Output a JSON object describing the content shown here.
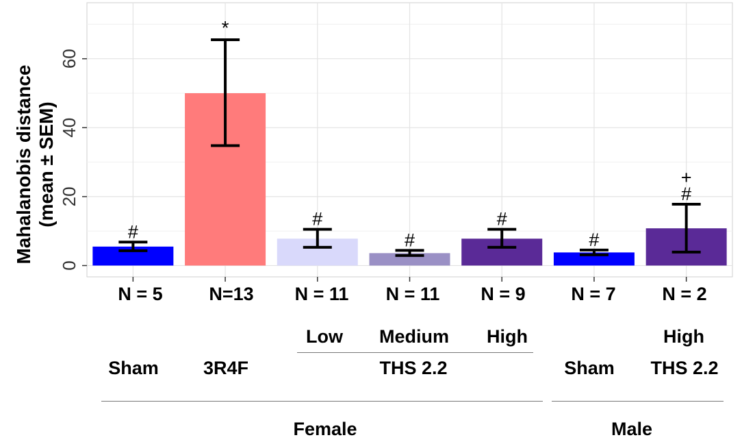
{
  "chart_data": {
    "type": "bar",
    "categories": [
      "Sham",
      "3R4F",
      "Low",
      "Medium",
      "High",
      "Sham",
      "High"
    ],
    "values": [
      5.5,
      50,
      7.8,
      3.6,
      7.8,
      3.8,
      10.8
    ],
    "error_upper": [
      6.8,
      65.5,
      10.5,
      4.4,
      10.5,
      4.5,
      17.8
    ],
    "error_lower": [
      4.3,
      34.8,
      5.3,
      2.9,
      5.3,
      3.1,
      3.9
    ],
    "colors": [
      "#0000ff",
      "#ff7b7b",
      "#d9d9fb",
      "#9a90c5",
      "#5a2a97",
      "#0000ff",
      "#5a2a97"
    ],
    "significance": [
      "#",
      "*",
      "#",
      "#",
      "#",
      "#",
      "+\n#"
    ],
    "n_labels": [
      "N = 5",
      "N=13",
      "N = 11",
      "N = 11",
      "N = 9",
      "N = 7",
      "N = 2"
    ],
    "ylabel_line1": "Mahalanobis distance",
    "ylabel_line2": "(mean ± SEM)",
    "yticks": [
      0,
      20,
      40,
      60
    ],
    "ylim": [
      -3,
      76
    ],
    "grid": true,
    "dose_labels": {
      "low": "Low",
      "medium": "Medium",
      "high_female": "High",
      "high_male": "High"
    },
    "group_labels": {
      "sham_female": "Sham",
      "r3r4f": "3R4F",
      "ths_female": "THS 2.2",
      "sham_male": "Sham",
      "ths_male": "THS 2.2"
    },
    "sex_labels": {
      "female": "Female",
      "male": "Male"
    }
  }
}
